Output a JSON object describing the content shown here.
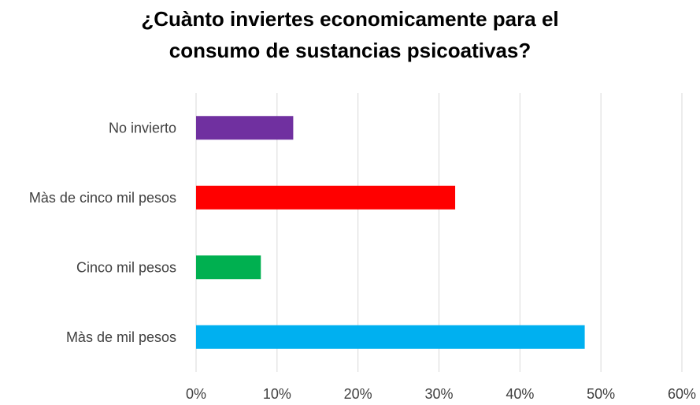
{
  "chart_data": {
    "type": "bar",
    "orientation": "horizontal",
    "title_lines": [
      "¿Cuànto inviertes economicamente para el",
      "consumo de sustancias psicoativas?"
    ],
    "categories": [
      "No invierto",
      "Màs de cinco mil pesos",
      "Cinco mil pesos",
      "Màs de mil pesos"
    ],
    "values": [
      12,
      32,
      8,
      48
    ],
    "colors": [
      "#7030a0",
      "#ff0000",
      "#00b050",
      "#00b0f0"
    ],
    "xlim": [
      0,
      60
    ],
    "ticks": [
      "0%",
      "10%",
      "20%",
      "30%",
      "40%",
      "50%",
      "60%"
    ],
    "grid": true,
    "legend": "none"
  }
}
